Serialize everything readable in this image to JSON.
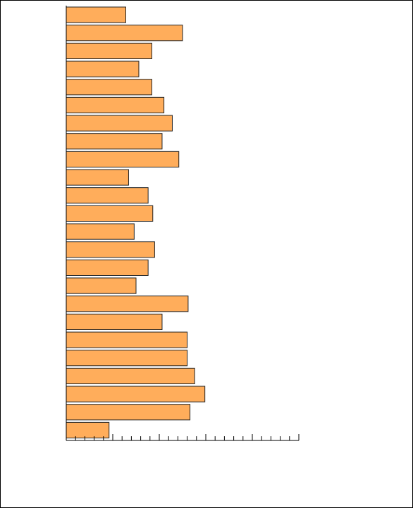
{
  "chart_data": {
    "type": "barh",
    "categories": [
      null,
      null,
      null,
      null,
      null,
      null,
      null,
      null,
      null,
      null,
      null,
      null,
      null,
      null,
      null,
      null,
      null,
      null,
      null,
      null,
      null,
      null,
      null,
      null
    ],
    "values": [
      6.4,
      12.5,
      9.2,
      7.8,
      9.2,
      10.5,
      11.4,
      10.3,
      12.1,
      6.7,
      8.8,
      9.3,
      7.3,
      9.5,
      8.8,
      7.5,
      13.1,
      10.3,
      13.0,
      13.0,
      13.8,
      14.9,
      13.3,
      4.6
    ],
    "color": "#ffad5b",
    "xlim": [
      0,
      25
    ],
    "xticks": [
      0,
      1,
      2,
      3,
      4,
      5,
      6,
      7,
      8,
      9,
      10,
      11,
      12,
      13,
      14,
      15,
      16,
      17,
      18,
      19,
      20,
      21,
      22,
      23,
      24,
      25
    ]
  }
}
